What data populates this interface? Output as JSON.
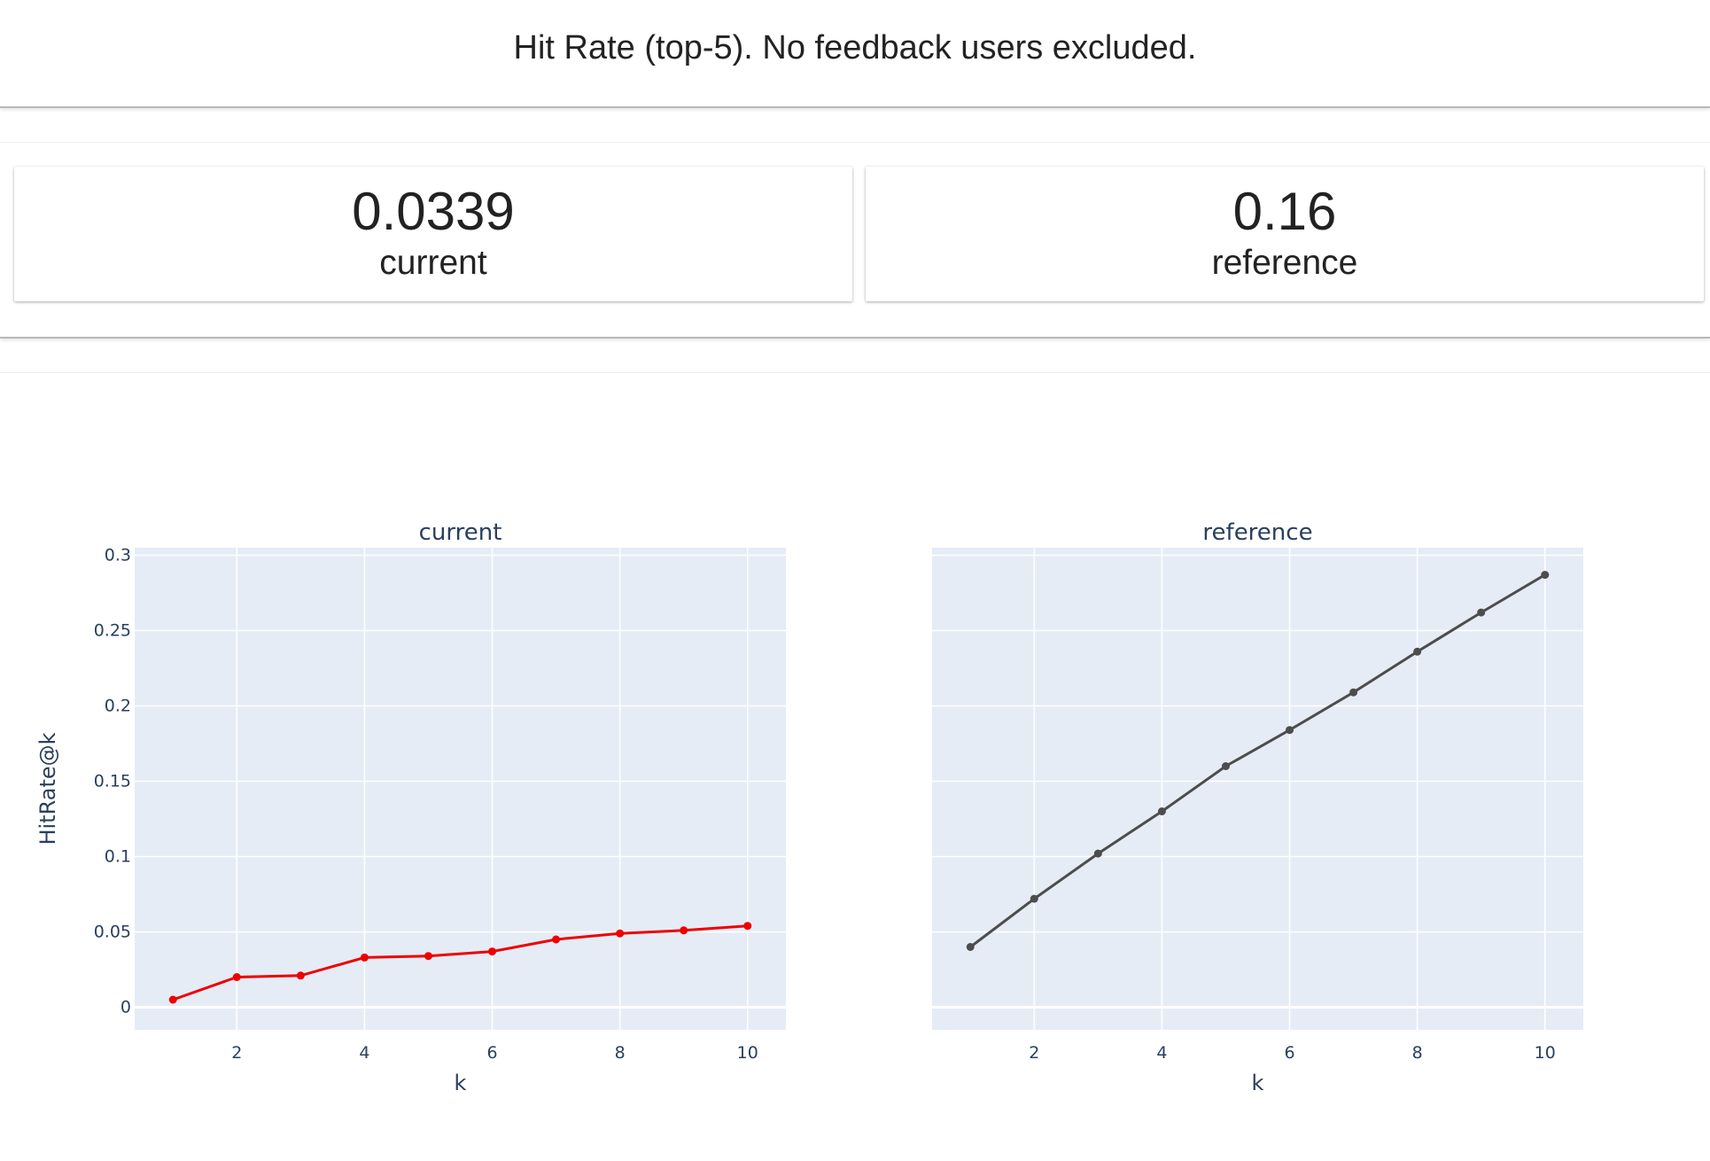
{
  "header": {
    "title": "Hit Rate (top-5). No feedback users excluded."
  },
  "counters": [
    {
      "value": "0.0339",
      "label": "current"
    },
    {
      "value": "0.16",
      "label": "reference"
    }
  ],
  "colors": {
    "plot_bg": "#e5ecf6",
    "current": "#ee0000",
    "reference": "#4d4d4d",
    "axis_text": "#2a3f5f"
  },
  "chart_data": [
    {
      "type": "line",
      "title": "current",
      "xlabel": "k",
      "ylabel": "HitRate@k",
      "xlim": [
        0.4,
        10.6
      ],
      "ylim": [
        -0.015,
        0.305
      ],
      "xticks": [
        "2",
        "4",
        "6",
        "8",
        "10"
      ],
      "yticks": [
        "0",
        "0.05",
        "0.1",
        "0.15",
        "0.2",
        "0.25",
        "0.3"
      ],
      "grid": true,
      "series": [
        {
          "x": [
            1,
            2,
            3,
            4,
            5,
            6,
            7,
            8,
            9,
            10
          ],
          "values": [
            0.005,
            0.02,
            0.021,
            0.033,
            0.034,
            0.037,
            0.045,
            0.049,
            0.051,
            0.054
          ],
          "color": "#ee0000"
        }
      ]
    },
    {
      "type": "line",
      "title": "reference",
      "xlabel": "k",
      "ylabel": "",
      "xlim": [
        0.4,
        10.6
      ],
      "ylim": [
        -0.015,
        0.305
      ],
      "xticks": [
        "2",
        "4",
        "6",
        "8",
        "10"
      ],
      "yticks": [],
      "grid": true,
      "series": [
        {
          "x": [
            1,
            2,
            3,
            4,
            5,
            6,
            7,
            8,
            9,
            10
          ],
          "values": [
            0.04,
            0.072,
            0.102,
            0.13,
            0.16,
            0.184,
            0.209,
            0.236,
            0.262,
            0.287
          ],
          "color": "#4d4d4d"
        }
      ]
    }
  ]
}
